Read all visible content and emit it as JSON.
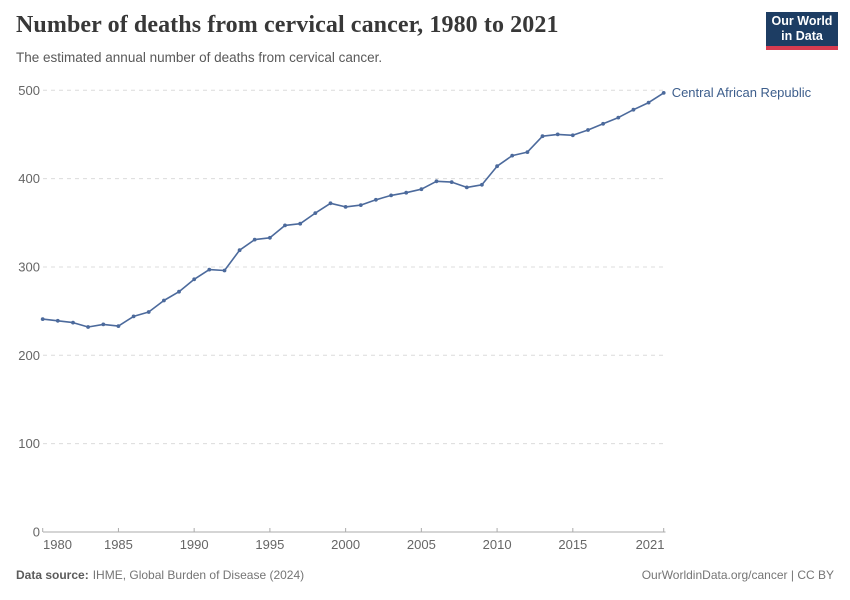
{
  "header": {
    "title": "Number of deaths from cervical cancer, 1980 to 2021",
    "subtitle": "The estimated annual number of deaths from cervical cancer.",
    "logo_line1": "Our World",
    "logo_line2": "in Data"
  },
  "chart_data": {
    "type": "line",
    "title": "Number of deaths from cervical cancer, 1980 to 2021",
    "xlabel": "",
    "ylabel": "",
    "xlim": [
      1980,
      2021
    ],
    "ylim": [
      0,
      500
    ],
    "grid": "horizontal dashed gridlines on",
    "legend_position": "end-of-line label",
    "x_ticks": [
      1980,
      1985,
      1990,
      1995,
      2000,
      2005,
      2010,
      2015,
      2021
    ],
    "y_ticks": [
      0,
      100,
      200,
      300,
      400,
      500
    ],
    "x": [
      1980,
      1981,
      1982,
      1983,
      1984,
      1985,
      1986,
      1987,
      1988,
      1989,
      1990,
      1991,
      1992,
      1993,
      1994,
      1995,
      1996,
      1997,
      1998,
      1999,
      2000,
      2001,
      2002,
      2003,
      2004,
      2005,
      2006,
      2007,
      2008,
      2009,
      2010,
      2011,
      2012,
      2013,
      2014,
      2015,
      2016,
      2017,
      2018,
      2019,
      2020,
      2021
    ],
    "series": [
      {
        "name": "Central African Republic",
        "color": "#4c6a9c",
        "values": [
          241,
          239,
          237,
          232,
          235,
          233,
          244,
          249,
          262,
          272,
          286,
          297,
          296,
          319,
          331,
          333,
          347,
          349,
          361,
          372,
          368,
          370,
          376,
          381,
          384,
          388,
          397,
          396,
          390,
          393,
          414,
          426,
          430,
          448,
          450,
          449,
          455,
          462,
          469,
          478,
          486,
          497
        ]
      }
    ]
  },
  "colors": {
    "series_line": "#4c6a9c",
    "series_label_text": "#3d5e8c",
    "gridline": "#dcdcdc",
    "axis_line": "#ababab",
    "tick_text": "#666666",
    "title_text": "#383838",
    "subtitle_text": "#595959",
    "logo_navy": "#1d3d63",
    "logo_red": "#d73c50",
    "footer_text": "#757575"
  },
  "footer": {
    "datasource_label": "Data source:",
    "datasource_value": "IHME, Global Burden of Disease (2024)",
    "credit": "OurWorldinData.org/cancer | CC BY"
  }
}
